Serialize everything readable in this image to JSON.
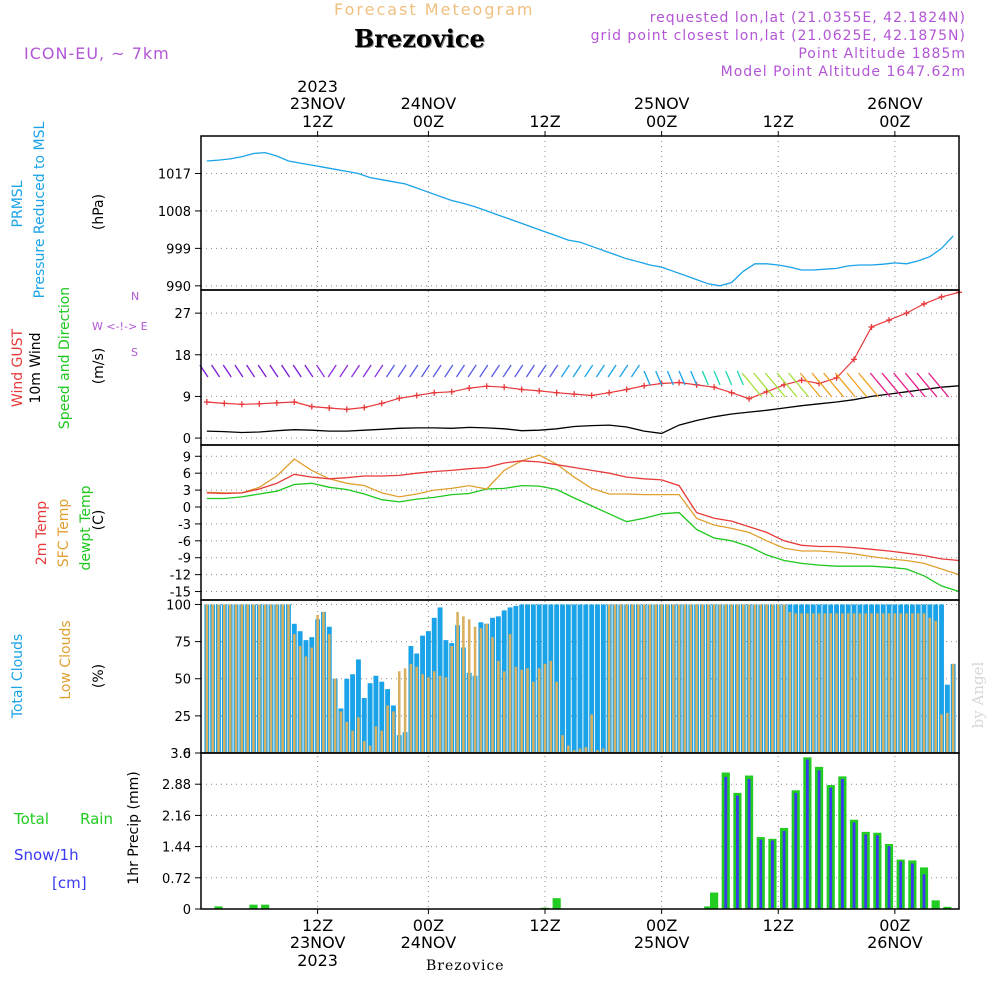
{
  "header": {
    "supertitle": "Forecast Meteogram",
    "location": "Brezovice",
    "model": "ICON-EU, ~ 7km",
    "info": [
      "requested lon,lat (21.0355E, 42.1824N)",
      "grid point closest lon,lat (21.0625E, 42.1875N)",
      "Point Altitude 1885m",
      "Model Point Altitude 1647.62m"
    ]
  },
  "bottom_label": "Brezovice",
  "watermark": "by Angel",
  "colors": {
    "pressure": "#1aa3e8",
    "gust": "#e8383a",
    "wind": "#000000",
    "temp2m": "#e83a3a",
    "sfc": "#e0a030",
    "dewpt": "#1ec81e",
    "total_clouds": "#1aa3e8",
    "low_clouds": "#d8b060",
    "rain": "#22cc22",
    "snow": "#3a3af0",
    "label_purple": "#b356d6"
  },
  "panel_labels": {
    "prmsl": [
      "PRMSL",
      "Pressure Reduced to MSL",
      "(hPa)"
    ],
    "wind": [
      "Wind GUST",
      "10m Wind",
      "Speed and Direction",
      "(m/s)"
    ],
    "wind_compass": [
      "N",
      "W <-!-> E",
      "S"
    ],
    "temp": [
      "2m Temp",
      "SFC Temp",
      "dewpt Temp",
      "(C)"
    ],
    "clouds": [
      "Total Clouds",
      "Low Clouds",
      "(%)"
    ],
    "precip": [
      "1hr Precip (mm)",
      "Total",
      "Rain",
      "Snow/1h",
      "[cm]"
    ]
  },
  "chart_data": [
    {
      "type": "line",
      "name": "prmsl",
      "ylim": [
        989,
        1026
      ],
      "yticks": [
        "1017",
        "1008",
        "999",
        "990"
      ],
      "ytick_values": [
        1017,
        1008,
        999,
        990
      ],
      "x_hours": [
        0,
        2,
        4,
        6,
        8,
        10,
        12,
        14,
        16,
        18,
        20,
        22,
        24,
        26,
        28,
        30,
        32,
        34,
        36,
        38,
        40,
        42,
        44,
        46,
        48,
        50,
        52,
        54,
        56,
        58,
        60,
        62,
        64,
        66,
        68,
        70,
        72,
        74,
        76,
        78,
        80,
        82,
        84,
        86,
        88,
        90,
        92,
        94,
        96,
        98,
        100,
        102,
        104,
        106,
        108,
        110,
        112,
        114,
        116,
        118,
        120,
        122,
        124,
        126,
        128
      ],
      "values": [
        1020,
        1020.2,
        1020.5,
        1021,
        1021.8,
        1022,
        1021.2,
        1020,
        1019.5,
        1019,
        1018.5,
        1018,
        1017.5,
        1017,
        1016,
        1015.5,
        1015,
        1014.5,
        1013.5,
        1012.5,
        1011.5,
        1010.5,
        1009.8,
        1009,
        1008,
        1007,
        1006,
        1005,
        1004,
        1003,
        1002,
        1001,
        1000.5,
        999.5,
        998.5,
        997.5,
        996.5,
        995.8,
        995,
        994.5,
        993.5,
        992.5,
        991.5,
        990.5,
        990,
        990.8,
        993.5,
        995.3,
        995.3,
        995,
        994.5,
        993.8,
        993.8,
        994,
        994.2,
        994.8,
        995,
        995,
        995.2,
        995.5,
        995.3,
        996,
        997,
        999,
        1002
      ]
    },
    {
      "type": "line",
      "name": "wind",
      "ylim": [
        -1.5,
        32
      ],
      "yticks": [
        "27",
        "18",
        "9",
        "0"
      ],
      "ytick_values": [
        27,
        18,
        9,
        0
      ],
      "x_hours": [
        0,
        3,
        6,
        9,
        12,
        15,
        18,
        21,
        24,
        27,
        30,
        33,
        36,
        39,
        42,
        45,
        48,
        51,
        54,
        57,
        60,
        63,
        66,
        69,
        72,
        75,
        78,
        81,
        84,
        87,
        90,
        93,
        96,
        99,
        102,
        105,
        108,
        111,
        114,
        117,
        120,
        123,
        126,
        129
      ],
      "gust": [
        7.8,
        7.5,
        7.3,
        7.4,
        7.6,
        7.8,
        6.8,
        6.5,
        6.2,
        6.6,
        7.5,
        8.6,
        9.2,
        9.8,
        10,
        10.8,
        11.2,
        11,
        10.5,
        10.2,
        9.8,
        9.5,
        9.2,
        9.8,
        10.5,
        11.3,
        11.8,
        12,
        11.5,
        11,
        9.8,
        8.5,
        10,
        11.5,
        12.5,
        11.8,
        13,
        17,
        24,
        25.5,
        27,
        29,
        30.5,
        31.5
      ],
      "speed": [
        1.5,
        1.4,
        1.2,
        1.3,
        1.6,
        1.8,
        1.7,
        1.5,
        1.5,
        1.7,
        1.9,
        2.1,
        2.2,
        2.2,
        2.1,
        2.3,
        2.2,
        2,
        1.6,
        1.7,
        2,
        2.5,
        2.7,
        2.8,
        2.4,
        1.5,
        1,
        2.8,
        3.8,
        4.6,
        5.2,
        5.6,
        6,
        6.5,
        7,
        7.4,
        7.8,
        8.3,
        9,
        9.5,
        10,
        10.5,
        11,
        11.3
      ],
      "arrow_color_stops": [
        "#7a1ad8",
        "#1aa3e8",
        "#1ad8b0",
        "#a6e03a",
        "#f0a020",
        "#e81a8a"
      ]
    },
    {
      "type": "line",
      "name": "temp",
      "ylim": [
        -16.5,
        11
      ],
      "yticks": [
        "9",
        "6",
        "3",
        "0",
        "-3",
        "-6",
        "-9",
        "-12",
        "-15"
      ],
      "ytick_values": [
        9,
        6,
        3,
        0,
        -3,
        -6,
        -9,
        -12,
        -15
      ],
      "x_hours": [
        0,
        3,
        6,
        9,
        12,
        15,
        18,
        21,
        24,
        27,
        30,
        33,
        36,
        39,
        42,
        45,
        48,
        51,
        54,
        57,
        60,
        63,
        66,
        69,
        72,
        75,
        78,
        81,
        84,
        87,
        90,
        93,
        96,
        99,
        102,
        105,
        108,
        111,
        114,
        117,
        120,
        123,
        126,
        129
      ],
      "t2m": [
        2.5,
        2.4,
        2.5,
        3.2,
        4.2,
        5.8,
        5.3,
        5,
        5.2,
        5.5,
        5.5,
        5.6,
        6,
        6.3,
        6.5,
        6.8,
        7,
        7.8,
        8.2,
        8,
        7.5,
        7,
        6.5,
        6,
        5.3,
        5,
        4.8,
        3.8,
        -1,
        -2,
        -2.5,
        -3.5,
        -4.5,
        -6,
        -6.8,
        -7,
        -7,
        -7.2,
        -7.5,
        -7.8,
        -8.2,
        -8.6,
        -9.2,
        -9.5
      ],
      "sfc": [
        2.6,
        2.5,
        2.5,
        3.5,
        5.5,
        8.5,
        6.5,
        5,
        4.2,
        3.8,
        2.5,
        1.8,
        2.3,
        3,
        3.3,
        3.8,
        3.2,
        6.5,
        8.2,
        9.2,
        7.6,
        5.3,
        3.3,
        2.3,
        2.3,
        2.2,
        2.2,
        2.2,
        -2,
        -3.2,
        -3.8,
        -4.5,
        -6,
        -7.3,
        -7.8,
        -7.8,
        -8,
        -8.3,
        -8.8,
        -9.2,
        -9.5,
        -10,
        -11,
        -12
      ],
      "dewpt": [
        1.5,
        1.5,
        1.8,
        2.3,
        2.8,
        4,
        4.2,
        3.5,
        3.1,
        2.3,
        1.3,
        0.9,
        1.4,
        1.7,
        2.2,
        2.4,
        3.2,
        3.3,
        3.8,
        3.7,
        3.1,
        1.6,
        0.2,
        -1.2,
        -2.6,
        -2,
        -1.2,
        -1,
        -4,
        -5.5,
        -6,
        -7,
        -8.5,
        -9.5,
        -10,
        -10.3,
        -10.5,
        -10.5,
        -10.5,
        -10.7,
        -11,
        -12.2,
        -14,
        -15
      ]
    },
    {
      "type": "bar",
      "name": "clouds",
      "ylim": [
        0,
        103
      ],
      "yticks": [
        "100",
        "75",
        "50",
        "25",
        "0"
      ],
      "ytick_values": [
        100,
        75,
        50,
        25,
        0
      ],
      "x_hours": [
        0,
        1,
        2,
        3,
        4,
        5,
        6,
        7,
        8,
        9,
        10,
        11,
        12,
        13,
        14,
        15,
        16,
        17,
        18,
        19,
        20,
        21,
        22,
        23,
        24,
        25,
        26,
        27,
        28,
        29,
        30,
        31,
        32,
        33,
        34,
        35,
        36,
        37,
        38,
        39,
        40,
        41,
        42,
        43,
        44,
        45,
        46,
        47,
        48,
        49,
        50,
        51,
        52,
        53,
        54,
        55,
        56,
        57,
        58,
        59,
        60,
        61,
        62,
        63,
        64,
        65,
        66,
        67,
        68,
        69,
        70,
        71,
        72,
        73,
        74,
        75,
        76,
        77,
        78,
        79,
        80,
        81,
        82,
        83,
        84,
        85,
        86,
        87,
        88,
        89,
        90,
        91,
        92,
        93,
        94,
        95,
        96,
        97,
        98,
        99,
        100,
        101,
        102,
        103,
        104,
        105,
        106,
        107,
        108,
        109,
        110,
        111,
        112,
        113,
        114,
        115,
        116,
        117,
        118,
        119,
        120,
        121,
        122,
        123,
        124,
        125,
        126,
        127,
        128
      ],
      "total": [
        100,
        100,
        100,
        100,
        100,
        100,
        100,
        100,
        100,
        100,
        100,
        100,
        100,
        100,
        100,
        87,
        82,
        76,
        78,
        90,
        95,
        85,
        50,
        30,
        50,
        53,
        63,
        37,
        47,
        52,
        48,
        43,
        32,
        12,
        14,
        72,
        67,
        79,
        82,
        91,
        98,
        76,
        74,
        86,
        71,
        54,
        52,
        88,
        87,
        91,
        92,
        96,
        98,
        99,
        100,
        100,
        100,
        100,
        100,
        100,
        100,
        100,
        100,
        100,
        100,
        100,
        100,
        100,
        100,
        100,
        100,
        100,
        100,
        100,
        100,
        100,
        100,
        100,
        100,
        100,
        100,
        100,
        100,
        100,
        100,
        100,
        100,
        100,
        100,
        100,
        100,
        100,
        100,
        100,
        100,
        100,
        100,
        100,
        100,
        100,
        100,
        100,
        100,
        100,
        100,
        100,
        100,
        100,
        100,
        100,
        100,
        100,
        100,
        100,
        100,
        100,
        100,
        100,
        100,
        100,
        100,
        100,
        100,
        100,
        100,
        100,
        100,
        46,
        60
      ],
      "low": [
        100,
        100,
        100,
        100,
        100,
        100,
        100,
        100,
        100,
        100,
        100,
        100,
        100,
        100,
        100,
        80,
        72,
        65,
        71,
        93,
        95,
        80,
        50,
        28,
        21,
        15,
        24,
        8,
        5,
        18,
        15,
        32,
        28,
        55,
        57,
        60,
        58,
        53,
        51,
        55,
        52,
        51,
        72,
        95,
        92,
        90,
        85,
        84,
        87,
        78,
        62,
        55,
        80,
        58,
        56,
        57,
        48,
        57,
        60,
        62,
        48,
        12,
        5,
        2,
        3,
        4,
        26,
        2,
        3,
        100,
        100,
        100,
        100,
        100,
        100,
        100,
        100,
        100,
        100,
        100,
        100,
        100,
        100,
        100,
        100,
        100,
        100,
        100,
        100,
        100,
        100,
        100,
        100,
        100,
        100,
        100,
        100,
        100,
        100,
        100,
        95,
        94,
        94,
        94,
        94,
        94,
        94,
        94,
        94,
        94,
        94,
        94,
        94,
        94,
        94,
        94,
        94,
        94,
        94,
        94,
        94,
        94,
        94,
        94,
        91,
        89,
        26,
        27,
        60
      ]
    },
    {
      "type": "bar",
      "name": "precip",
      "ylim": [
        0,
        3.6
      ],
      "yticks": [
        "3.6",
        "2.88",
        "2.16",
        "1.44",
        "0.72",
        "0"
      ],
      "ytick_values": [
        3.6,
        2.88,
        2.16,
        1.44,
        0.72,
        0
      ],
      "x_hours": [
        2,
        8,
        10,
        58,
        60,
        86,
        87,
        89,
        91,
        93,
        95,
        97,
        99,
        101,
        103,
        105,
        107,
        109,
        111,
        113,
        115,
        117,
        119,
        121,
        123,
        125,
        127
      ],
      "rain": [
        0.06,
        0.1,
        0.1,
        0.03,
        0.25,
        0.06,
        0.38,
        3.15,
        2.68,
        3.08,
        1.66,
        1.62,
        1.87,
        2.74,
        3.5,
        3.28,
        2.86,
        3.06,
        2.06,
        1.78,
        1.76,
        1.5,
        1.14,
        1.12,
        0.96,
        0.2,
        0.05
      ],
      "snow": [
        0,
        0,
        0,
        0,
        0,
        0,
        0,
        3.05,
        2.62,
        3.0,
        1.6,
        1.58,
        1.8,
        2.68,
        3.45,
        3.2,
        2.8,
        3.0,
        2.0,
        1.72,
        1.7,
        1.45,
        1.1,
        1.05,
        0.8,
        0,
        0
      ]
    }
  ],
  "x_axis": {
    "top_year": "2023",
    "top_ticks": [
      {
        "hour": 19,
        "line1": "23NOV",
        "line2": "12Z"
      },
      {
        "hour": 38,
        "line1": "24NOV",
        "line2": "00Z"
      },
      {
        "hour": 58,
        "line1": "",
        "line2": "12Z"
      },
      {
        "hour": 78,
        "line1": "25NOV",
        "line2": "00Z"
      },
      {
        "hour": 98,
        "line1": "",
        "line2": "12Z"
      },
      {
        "hour": 118,
        "line1": "26NOV",
        "line2": "00Z"
      }
    ],
    "bottom_ticks": [
      {
        "hour": 19,
        "line1": "12Z",
        "line2": "23NOV",
        "line3": "2023"
      },
      {
        "hour": 38,
        "line1": "00Z",
        "line2": "24NOV",
        "line3": ""
      },
      {
        "hour": 58,
        "line1": "12Z",
        "line2": "",
        "line3": ""
      },
      {
        "hour": 78,
        "line1": "00Z",
        "line2": "25NOV",
        "line3": ""
      },
      {
        "hour": 98,
        "line1": "12Z",
        "line2": "",
        "line3": ""
      },
      {
        "hour": 118,
        "line1": "00Z",
        "line2": "26NOV",
        "line3": ""
      }
    ]
  }
}
